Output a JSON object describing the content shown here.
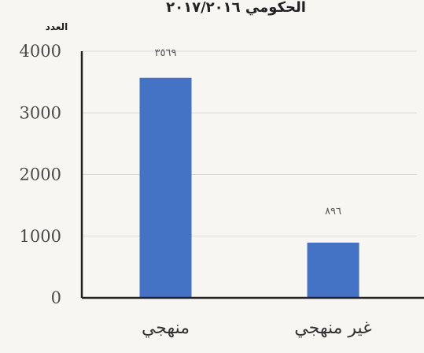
{
  "chart_data": {
    "type": "bar",
    "title": "الحكومي ٢٠١٧/٢٠١٦",
    "ylabel": "العدد",
    "xlabel": "",
    "categories": [
      "منهجي",
      "غير منهجي"
    ],
    "values": [
      3569,
      896
    ],
    "data_labels": [
      "٣٥٦٩",
      "٨٩٦"
    ],
    "ylim": [
      0,
      4000
    ],
    "yticks": [
      0,
      1000,
      2000,
      3000,
      4000
    ],
    "bar_color": "#4472c4",
    "grid": true,
    "legend": "none"
  }
}
